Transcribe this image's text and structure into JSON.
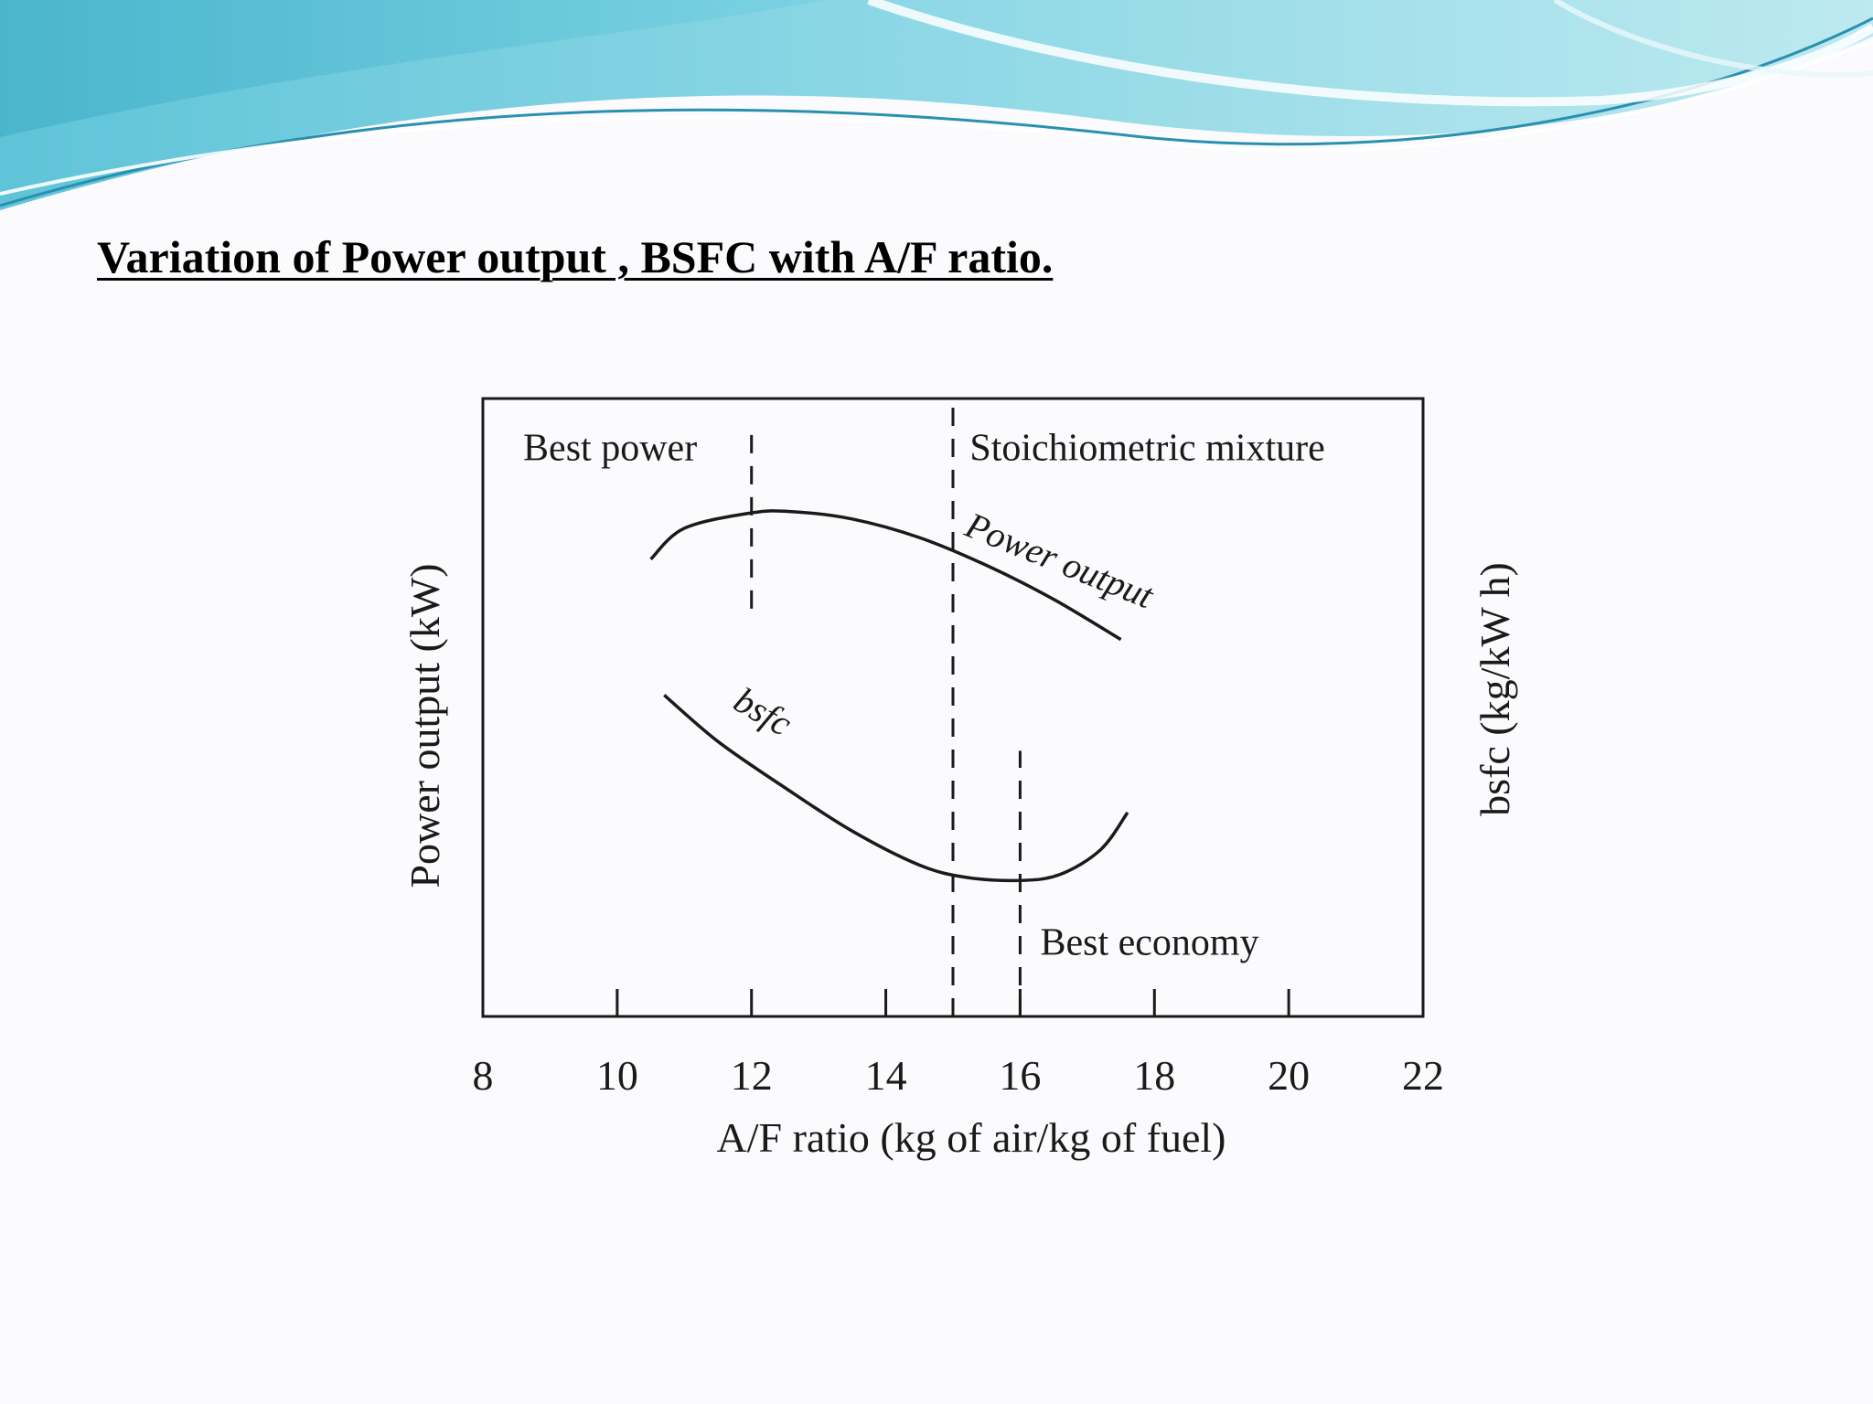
{
  "slide": {
    "title": "Variation of Power output , BSFC with A/F ratio."
  },
  "colors": {
    "banner_light": "#c9eef3",
    "banner_mid": "#7fd3e0",
    "banner_dark": "#3aa9c4",
    "ink": "#1a1a1a"
  },
  "chart_data": {
    "type": "line",
    "title": "",
    "xlabel": "A/F ratio (kg of air/kg of fuel)",
    "ylabel_left": "Power output (kW)",
    "ylabel_right": "bsfc (kg/kW h)",
    "xlim": [
      8,
      22
    ],
    "x_ticks": [
      8,
      10,
      12,
      14,
      16,
      18,
      20,
      22
    ],
    "y_ticks": [],
    "y_scale": "relative (no numeric scale shown)",
    "grid": false,
    "legend": "none (curves labelled inline)",
    "series": [
      {
        "name": "Power output",
        "x": [
          10.5,
          11.0,
          12.0,
          12.6,
          13.5,
          14.5,
          15.5,
          16.5,
          17.5
        ],
        "y": [
          0.74,
          0.79,
          0.815,
          0.817,
          0.805,
          0.775,
          0.73,
          0.675,
          0.61
        ]
      },
      {
        "name": "bsfc",
        "x": [
          10.7,
          11.5,
          12.5,
          13.5,
          14.5,
          15.2,
          16.0,
          16.6,
          17.2,
          17.6
        ],
        "y": [
          0.52,
          0.445,
          0.37,
          0.3,
          0.245,
          0.225,
          0.22,
          0.23,
          0.27,
          0.33
        ]
      }
    ],
    "reference_lines": [
      {
        "label": "Best power",
        "x": 12.0,
        "y_from": 0.66,
        "y_to": 0.96
      },
      {
        "label": "Stoichiometric mixture",
        "x": 15.0,
        "y_from": 0.0,
        "y_to": 1.0
      },
      {
        "label": "Best economy",
        "x": 16.0,
        "y_from": 0.0,
        "y_to": 0.43
      }
    ],
    "annotations": {
      "best_power": "Best power",
      "stoichiometric": "Stoichiometric mixture",
      "best_economy": "Best economy",
      "power_curve": "Power output",
      "bsfc_curve": "bsfc"
    }
  }
}
